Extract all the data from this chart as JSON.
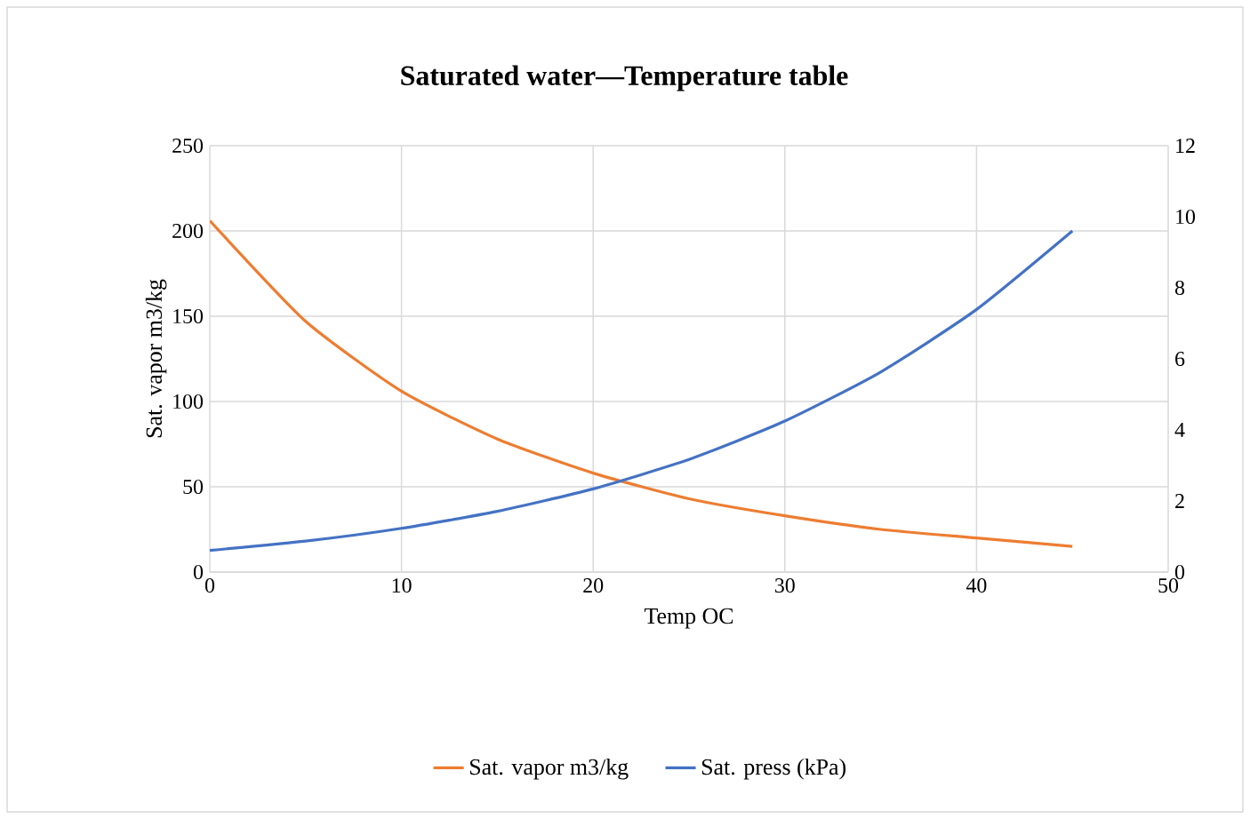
{
  "chart_data": {
    "type": "line",
    "title": "Saturated water—Temperature table",
    "xlabel": "Temp OC",
    "ylabel": "Sat. vapor m3/kg",
    "x": [
      0,
      5,
      10,
      15,
      20,
      25,
      30,
      35,
      40,
      45
    ],
    "series": [
      {
        "name": "Sat. vapor m3/kg",
        "color": "#ed7d31",
        "values": [
          206,
          147,
          106,
          78,
          58,
          43,
          33,
          25,
          20,
          15
        ]
      },
      {
        "name": "Sat. press (kPa)",
        "color": "#4472c4",
        "axis": "y2",
        "values": [
          0.61,
          0.87,
          1.23,
          1.71,
          2.34,
          3.17,
          4.25,
          5.63,
          7.39,
          9.6
        ]
      }
    ],
    "xlim": [
      0,
      50
    ],
    "xticks": [
      0,
      10,
      20,
      30,
      40,
      50
    ],
    "ylim": [
      0,
      250
    ],
    "yticks": [
      0,
      50,
      100,
      150,
      200,
      250
    ],
    "y2lim": [
      0,
      12
    ],
    "y2ticks": [
      0,
      2,
      4,
      6,
      8,
      10,
      12
    ],
    "grid": true,
    "legend": "bottom"
  }
}
